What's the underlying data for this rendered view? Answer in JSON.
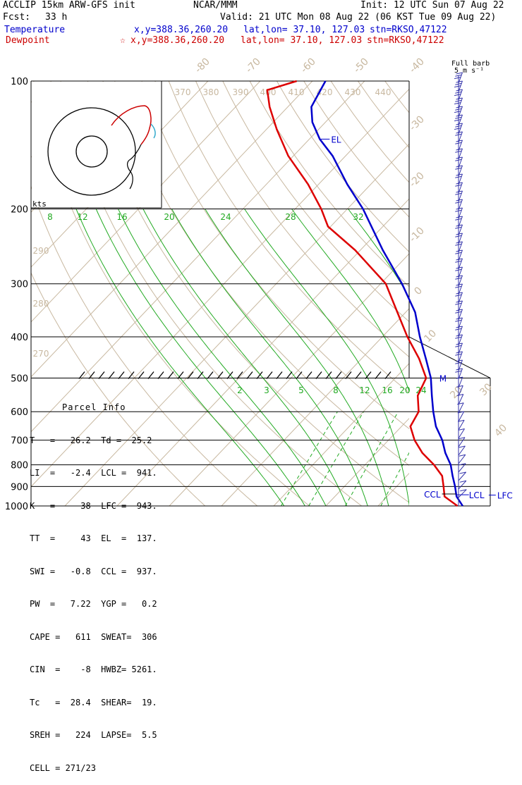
{
  "header": {
    "line1_left": "ACCLIP 15km ARW-GFS init",
    "line1_mid": "NCAR/MMM",
    "line1_right": "Init: 12 UTC Sun 07 Aug 22",
    "fcst_label": "Fcst:",
    "fcst_value": "33 h",
    "valid": "Valid: 21 UTC Mon 08 Aug 22 (06 KST Tue 09 Aug 22)",
    "temp_label": "Temperature",
    "temp_xy": "x,y=388.36,260.20",
    "temp_latlon": "lat,lon= 37.10, 127.03",
    "temp_stn": "stn=RKSO,47122",
    "dew_label": "Dewpoint",
    "dew_star": "☆",
    "dew_xy": "x,y=388.36,260.20",
    "dew_latlon": "lat,lon= 37.10, 127.03",
    "dew_stn": "stn=RKSO,47122"
  },
  "barb_legend": {
    "line1": "Full barb",
    "line2": "5 m s⁻¹"
  },
  "hodograph": {
    "units": "kts"
  },
  "parcel_info": {
    "title": "Parcel Info",
    "rows": [
      "T   =   26.2  Td =  25.2",
      "LI  =   -2.4  LCL =  941.",
      "K   =     38  LFC =  943.",
      "TT  =     43  EL  =  137.",
      "SWI =   -0.8  CCL =  937.",
      "PW  =   7.22  YGP =   0.2",
      "CAPE =   611  SWEAT=  306",
      "CIN  =    -8  HWBZ= 5261.",
      "Tc   =  28.4  SHEAR=  19.",
      "SREH =   224  LAPSE=  5.5",
      "CELL = 271/23"
    ]
  },
  "colors": {
    "temperature": "#0000cc",
    "dewpoint": "#dd0000",
    "isotherm": "#c8b8a0",
    "dry_adiabat": "#c8b8a0",
    "moist_adiabat": "#22aa22",
    "mixing_ratio": "#22aa22",
    "isobar": "#000000",
    "barb": "#3333aa"
  },
  "chart_data": {
    "type": "line",
    "title": "Skew-T log-P sounding",
    "y_axis": {
      "label": "",
      "units": "hPa",
      "scale": "log",
      "reversed": true,
      "ticks": [
        100,
        200,
        300,
        400,
        500,
        600,
        700,
        800,
        900,
        1000
      ]
    },
    "isotherm_labels": [
      "-80",
      "-70",
      "-60",
      "-50",
      "-40",
      "-30",
      "-20",
      "-10",
      "0",
      "10",
      "20",
      "30",
      "40"
    ],
    "isotherm_values": [
      -80,
      -70,
      -60,
      -50,
      -40,
      -30,
      -20,
      -10,
      0,
      10,
      20,
      30,
      40
    ],
    "theta_labels_top": [
      "370",
      "380",
      "390",
      "400",
      "410",
      "420",
      "430",
      "440"
    ],
    "theta_labels_left": [
      "290",
      "280",
      "270"
    ],
    "moist_labels_top": [
      "8",
      "12",
      "16",
      "20",
      "24",
      "28",
      "32"
    ],
    "mixing_ratio_labels": [
      "2",
      "3",
      "5",
      "8",
      "12",
      "16",
      "20",
      "24"
    ],
    "series": [
      {
        "name": "Temperature",
        "points": [
          {
            "p": 1000,
            "t": 26.2
          },
          {
            "p": 950,
            "t": 23.3
          },
          {
            "p": 900,
            "t": 21.2
          },
          {
            "p": 850,
            "t": 18.8
          },
          {
            "p": 800,
            "t": 16.4
          },
          {
            "p": 750,
            "t": 13.2
          },
          {
            "p": 700,
            "t": 10.3
          },
          {
            "p": 650,
            "t": 6.6
          },
          {
            "p": 600,
            "t": 3.4
          },
          {
            "p": 550,
            "t": 0.2
          },
          {
            "p": 500,
            "t": -3.2
          },
          {
            "p": 450,
            "t": -7.7
          },
          {
            "p": 400,
            "t": -12.8
          },
          {
            "p": 350,
            "t": -18.2
          },
          {
            "p": 300,
            "t": -25.9
          },
          {
            "p": 250,
            "t": -35.7
          },
          {
            "p": 200,
            "t": -47.0
          },
          {
            "p": 175,
            "t": -54.5
          },
          {
            "p": 150,
            "t": -62.5
          },
          {
            "p": 137,
            "t": -68.0
          },
          {
            "p": 125,
            "t": -72.5
          },
          {
            "p": 115,
            "t": -75.5
          },
          {
            "p": 100,
            "t": -77.5
          }
        ]
      },
      {
        "name": "Dewpoint",
        "points": [
          {
            "p": 1000,
            "t": 25.2
          },
          {
            "p": 950,
            "t": 21.0
          },
          {
            "p": 900,
            "t": 19.0
          },
          {
            "p": 850,
            "t": 16.8
          },
          {
            "p": 800,
            "t": 13.2
          },
          {
            "p": 750,
            "t": 8.8
          },
          {
            "p": 700,
            "t": 5.0
          },
          {
            "p": 650,
            "t": 1.7
          },
          {
            "p": 600,
            "t": 0.6
          },
          {
            "p": 550,
            "t": -2.5
          },
          {
            "p": 500,
            "t": -4.1
          },
          {
            "p": 450,
            "t": -9.0
          },
          {
            "p": 400,
            "t": -15.2
          },
          {
            "p": 350,
            "t": -21.6
          },
          {
            "p": 300,
            "t": -29.0
          },
          {
            "p": 250,
            "t": -41.0
          },
          {
            "p": 220,
            "t": -50.5
          },
          {
            "p": 200,
            "t": -55.0
          },
          {
            "p": 175,
            "t": -62.0
          },
          {
            "p": 150,
            "t": -71.0
          },
          {
            "p": 130,
            "t": -78.0
          },
          {
            "p": 115,
            "t": -83.5
          },
          {
            "p": 105,
            "t": -87.0
          },
          {
            "p": 100,
            "t": -83.0
          }
        ]
      }
    ],
    "annotations": [
      {
        "text": "EL",
        "p": 137
      },
      {
        "text": "M",
        "p": 500
      },
      {
        "text": "CCL",
        "p": 937
      },
      {
        "text": "LCL",
        "p": 941
      },
      {
        "text": "LFC",
        "p": 943
      }
    ]
  }
}
